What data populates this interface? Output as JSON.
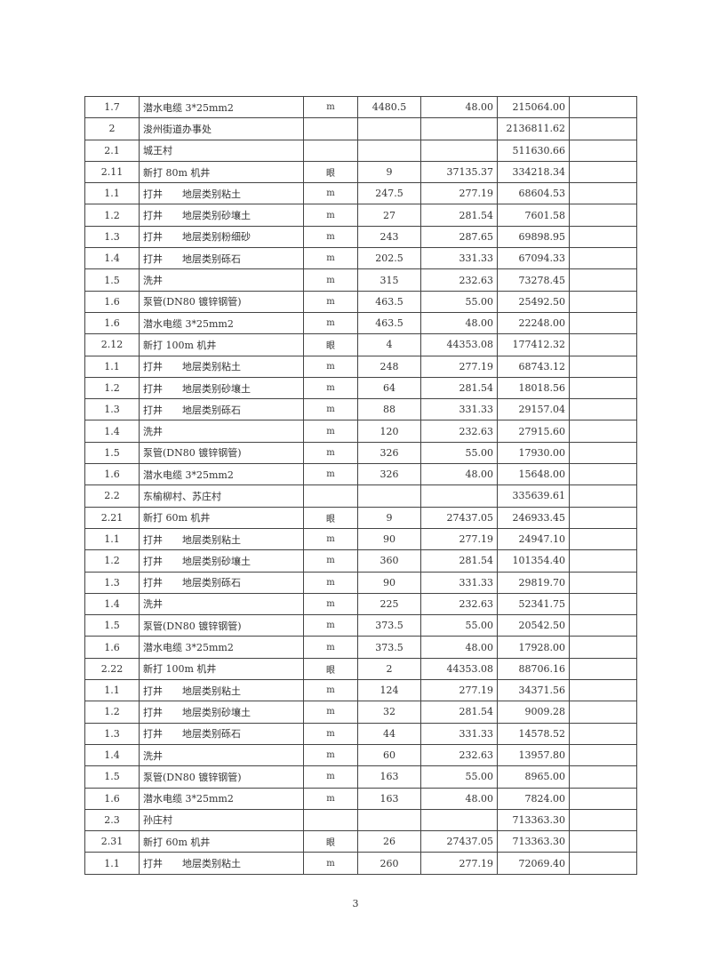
{
  "rows": [
    {
      "no": "1.7",
      "name": "潜水电缆 3*25mm2",
      "unit": "m",
      "qty": "4480.5",
      "price": "48.00",
      "total": "215064.00"
    },
    {
      "no": "2",
      "name": "浚州街道办事处",
      "unit": "",
      "qty": "",
      "price": "",
      "total": "2136811.62"
    },
    {
      "no": "2.1",
      "name": "城王村",
      "unit": "",
      "qty": "",
      "price": "",
      "total": "511630.66"
    },
    {
      "no": "2.11",
      "name": "新打 80m 机井",
      "unit": "眼",
      "qty": "9",
      "price": "37135.37",
      "total": "334218.34"
    },
    {
      "no": "1.1",
      "name": "打井　　地层类别粘土",
      "unit": "m",
      "qty": "247.5",
      "price": "277.19",
      "total": "68604.53"
    },
    {
      "no": "1.2",
      "name": "打井　　地层类别砂壤土",
      "unit": "m",
      "qty": "27",
      "price": "281.54",
      "total": "7601.58"
    },
    {
      "no": "1.3",
      "name": "打井　　地层类别粉细砂",
      "unit": "m",
      "qty": "243",
      "price": "287.65",
      "total": "69898.95"
    },
    {
      "no": "1.4",
      "name": "打井　　地层类别砾石",
      "unit": "m",
      "qty": "202.5",
      "price": "331.33",
      "total": "67094.33"
    },
    {
      "no": "1.5",
      "name": "洗井",
      "unit": "m",
      "qty": "315",
      "price": "232.63",
      "total": "73278.45"
    },
    {
      "no": "1.6",
      "name": "泵管(DN80 镀锌钢管)",
      "unit": "m",
      "qty": "463.5",
      "price": "55.00",
      "total": "25492.50"
    },
    {
      "no": "1.6",
      "name": "潜水电缆 3*25mm2",
      "unit": "m",
      "qty": "463.5",
      "price": "48.00",
      "total": "22248.00"
    },
    {
      "no": "2.12",
      "name": "新打 100m 机井",
      "unit": "眼",
      "qty": "4",
      "price": "44353.08",
      "total": "177412.32"
    },
    {
      "no": "1.1",
      "name": "打井　　地层类别粘土",
      "unit": "m",
      "qty": "248",
      "price": "277.19",
      "total": "68743.12"
    },
    {
      "no": "1.2",
      "name": "打井　　地层类别砂壤土",
      "unit": "m",
      "qty": "64",
      "price": "281.54",
      "total": "18018.56"
    },
    {
      "no": "1.3",
      "name": "打井　　地层类别砾石",
      "unit": "m",
      "qty": "88",
      "price": "331.33",
      "total": "29157.04"
    },
    {
      "no": "1.4",
      "name": "洗井",
      "unit": "m",
      "qty": "120",
      "price": "232.63",
      "total": "27915.60"
    },
    {
      "no": "1.5",
      "name": "泵管(DN80 镀锌钢管)",
      "unit": "m",
      "qty": "326",
      "price": "55.00",
      "total": "17930.00"
    },
    {
      "no": "1.6",
      "name": "潜水电缆 3*25mm2",
      "unit": "m",
      "qty": "326",
      "price": "48.00",
      "total": "15648.00"
    },
    {
      "no": "2.2",
      "name": "东榆柳村、苏庄村",
      "unit": "",
      "qty": "",
      "price": "",
      "total": "335639.61"
    },
    {
      "no": "2.21",
      "name": "新打 60m 机井",
      "unit": "眼",
      "qty": "9",
      "price": "27437.05",
      "total": "246933.45"
    },
    {
      "no": "1.1",
      "name": "打井　　地层类别粘土",
      "unit": "m",
      "qty": "90",
      "price": "277.19",
      "total": "24947.10"
    },
    {
      "no": "1.2",
      "name": "打井　　地层类别砂壤土",
      "unit": "m",
      "qty": "360",
      "price": "281.54",
      "total": "101354.40"
    },
    {
      "no": "1.3",
      "name": "打井　　地层类别砾石",
      "unit": "m",
      "qty": "90",
      "price": "331.33",
      "total": "29819.70"
    },
    {
      "no": "1.4",
      "name": "洗井",
      "unit": "m",
      "qty": "225",
      "price": "232.63",
      "total": "52341.75"
    },
    {
      "no": "1.5",
      "name": "泵管(DN80 镀锌钢管)",
      "unit": "m",
      "qty": "373.5",
      "price": "55.00",
      "total": "20542.50"
    },
    {
      "no": "1.6",
      "name": "潜水电缆 3*25mm2",
      "unit": "m",
      "qty": "373.5",
      "price": "48.00",
      "total": "17928.00"
    },
    {
      "no": "2.22",
      "name": "新打 100m 机井",
      "unit": "眼",
      "qty": "2",
      "price": "44353.08",
      "total": "88706.16"
    },
    {
      "no": "1.1",
      "name": "打井　　地层类别粘土",
      "unit": "m",
      "qty": "124",
      "price": "277.19",
      "total": "34371.56"
    },
    {
      "no": "1.2",
      "name": "打井　　地层类别砂壤土",
      "unit": "m",
      "qty": "32",
      "price": "281.54",
      "total": "9009.28"
    },
    {
      "no": "1.3",
      "name": "打井　　地层类别砾石",
      "unit": "m",
      "qty": "44",
      "price": "331.33",
      "total": "14578.52"
    },
    {
      "no": "1.4",
      "name": "洗井",
      "unit": "m",
      "qty": "60",
      "price": "232.63",
      "total": "13957.80"
    },
    {
      "no": "1.5",
      "name": "泵管(DN80 镀锌钢管)",
      "unit": "m",
      "qty": "163",
      "price": "55.00",
      "total": "8965.00"
    },
    {
      "no": "1.6",
      "name": "潜水电缆 3*25mm2",
      "unit": "m",
      "qty": "163",
      "price": "48.00",
      "total": "7824.00"
    },
    {
      "no": "2.3",
      "name": "孙庄村",
      "unit": "",
      "qty": "",
      "price": "",
      "total": "713363.30"
    },
    {
      "no": "2.31",
      "name": "新打 60m 机井",
      "unit": "眼",
      "qty": "26",
      "price": "27437.05",
      "total": "713363.30"
    },
    {
      "no": "1.1",
      "name": "打井　　地层类别粘土",
      "unit": "m",
      "qty": "260",
      "price": "277.19",
      "total": "72069.40"
    }
  ],
  "page_number": "3"
}
